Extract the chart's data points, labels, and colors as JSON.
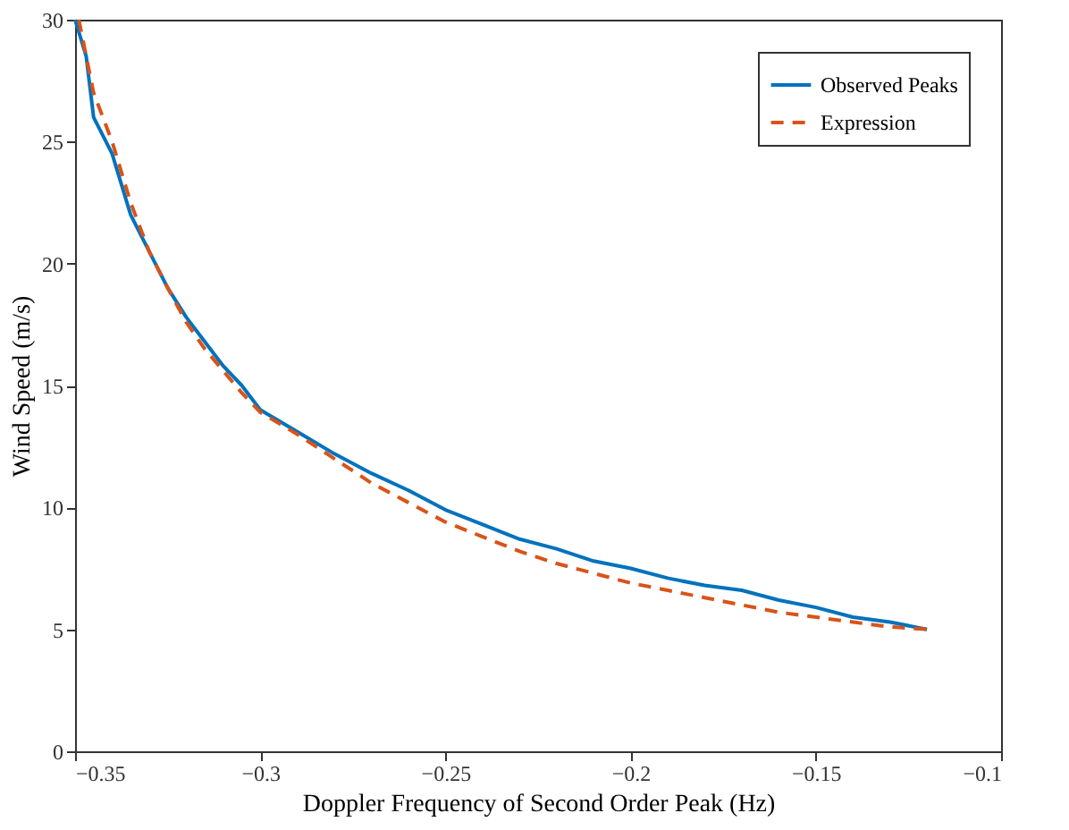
{
  "chart_data": {
    "type": "line",
    "xlabel": "Doppler Frequency of Second Order Peak (Hz)",
    "ylabel": "Wind Speed (m/s)",
    "xlim": [
      -0.35,
      -0.1
    ],
    "xticks": [
      -0.35,
      -0.3,
      -0.25,
      -0.2,
      -0.15,
      -0.1
    ],
    "ylim": [
      0,
      30
    ],
    "yticks": [
      0,
      5,
      10,
      15,
      20,
      25,
      30
    ],
    "grid": false,
    "legend": "top right",
    "series": [
      {
        "name": "Observed Peaks",
        "color": "#0072bd",
        "line_style": "solid",
        "x": [
          -0.35,
          -0.347,
          -0.345,
          -0.34,
          -0.335,
          -0.33,
          -0.325,
          -0.32,
          -0.315,
          -0.31,
          -0.305,
          -0.3,
          -0.29,
          -0.28,
          -0.27,
          -0.26,
          -0.25,
          -0.24,
          -0.23,
          -0.22,
          -0.21,
          -0.2,
          -0.19,
          -0.18,
          -0.17,
          -0.16,
          -0.15,
          -0.14,
          -0.13,
          -0.12
        ],
        "values": [
          30,
          28.5,
          26,
          24.5,
          22,
          20.5,
          19,
          17.8,
          16.8,
          15.8,
          15,
          14,
          13.1,
          12.2,
          11.4,
          10.7,
          9.9,
          9.3,
          8.7,
          8.3,
          7.8,
          7.5,
          7.1,
          6.8,
          6.6,
          6.2,
          5.9,
          5.5,
          5.3,
          5.0
        ]
      },
      {
        "name": "Expression",
        "color": "#d95319",
        "line_style": "dashed",
        "x": [
          -0.349,
          -0.345,
          -0.34,
          -0.335,
          -0.33,
          -0.325,
          -0.32,
          -0.315,
          -0.31,
          -0.305,
          -0.3,
          -0.29,
          -0.28,
          -0.27,
          -0.26,
          -0.25,
          -0.24,
          -0.23,
          -0.22,
          -0.21,
          -0.2,
          -0.19,
          -0.18,
          -0.17,
          -0.16,
          -0.15,
          -0.14,
          -0.13,
          -0.12
        ],
        "values": [
          30,
          27,
          25,
          22.5,
          20.5,
          19,
          17.6,
          16.5,
          15.6,
          14.7,
          13.9,
          13.0,
          12.0,
          11.0,
          10.2,
          9.4,
          8.8,
          8.2,
          7.7,
          7.3,
          6.9,
          6.6,
          6.3,
          6.0,
          5.7,
          5.5,
          5.3,
          5.1,
          5.0
        ]
      }
    ]
  }
}
